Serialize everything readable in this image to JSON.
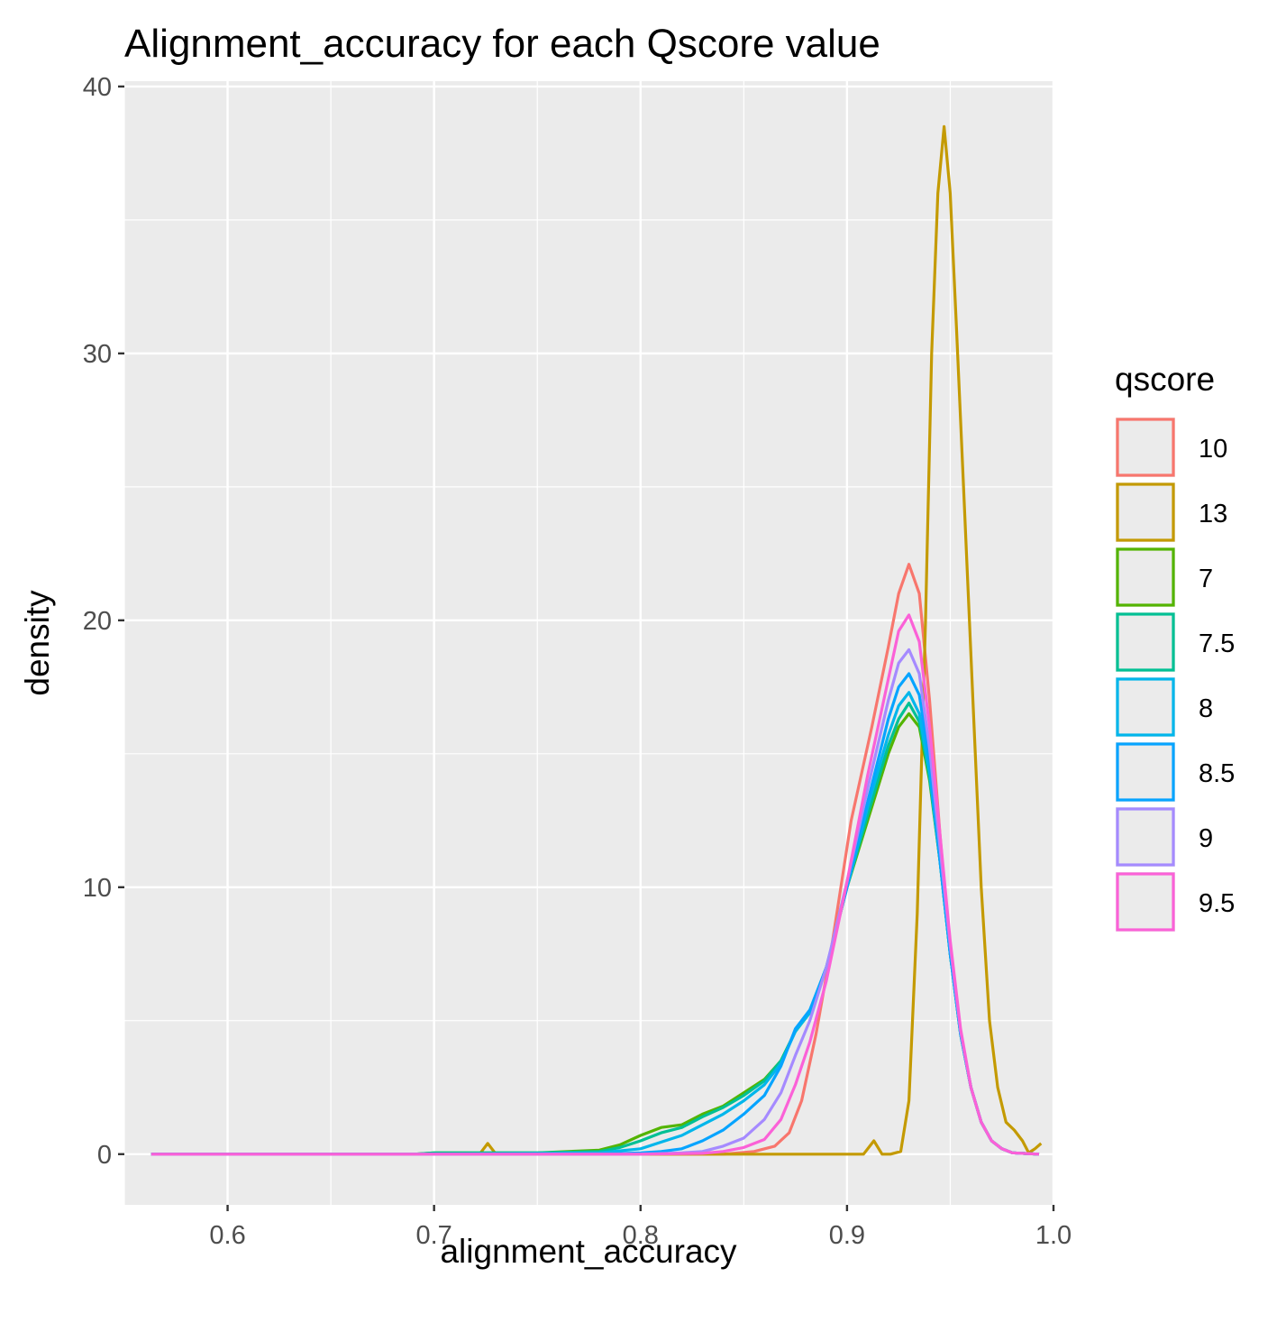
{
  "chart_data": {
    "type": "line",
    "title": "Alignment_accuracy for each Qscore value",
    "xlabel": "alignment_accuracy",
    "ylabel": "density",
    "xlim": [
      0.55,
      1.0
    ],
    "ylim": [
      -1.9,
      40.2
    ],
    "x_ticks": [
      0.6,
      0.7,
      0.8,
      0.9,
      1.0
    ],
    "x_tick_labels": [
      "0.6",
      "0.7",
      "0.8",
      "0.9",
      "1.0"
    ],
    "y_ticks": [
      0,
      10,
      20,
      30,
      40
    ],
    "y_tick_labels": [
      "0",
      "10",
      "20",
      "30",
      "40"
    ],
    "grid": true,
    "legend": {
      "title": "qscore",
      "position": "right"
    },
    "series": [
      {
        "name": "10",
        "color": "#F8766D",
        "points": [
          [
            0.563,
            0
          ],
          [
            0.7,
            0
          ],
          [
            0.8,
            0
          ],
          [
            0.84,
            0
          ],
          [
            0.855,
            0.1
          ],
          [
            0.865,
            0.3
          ],
          [
            0.872,
            0.8
          ],
          [
            0.878,
            2
          ],
          [
            0.885,
            4.5
          ],
          [
            0.893,
            8
          ],
          [
            0.902,
            12.5
          ],
          [
            0.912,
            16
          ],
          [
            0.92,
            19
          ],
          [
            0.925,
            21
          ],
          [
            0.93,
            22.1
          ],
          [
            0.935,
            21
          ],
          [
            0.94,
            17
          ],
          [
            0.945,
            12
          ],
          [
            0.95,
            7.5
          ],
          [
            0.955,
            4.5
          ],
          [
            0.96,
            2.5
          ],
          [
            0.965,
            1.2
          ],
          [
            0.97,
            0.5
          ],
          [
            0.975,
            0.2
          ],
          [
            0.98,
            0.05
          ],
          [
            0.993,
            0
          ]
        ]
      },
      {
        "name": "13",
        "color": "#C49A00",
        "points": [
          [
            0.563,
            0
          ],
          [
            0.7,
            0
          ],
          [
            0.722,
            0
          ],
          [
            0.726,
            0.4
          ],
          [
            0.73,
            0
          ],
          [
            0.74,
            0
          ],
          [
            0.8,
            0
          ],
          [
            0.85,
            0
          ],
          [
            0.9,
            0
          ],
          [
            0.908,
            0
          ],
          [
            0.913,
            0.5
          ],
          [
            0.917,
            0
          ],
          [
            0.921,
            0
          ],
          [
            0.926,
            0.1
          ],
          [
            0.93,
            2
          ],
          [
            0.934,
            9
          ],
          [
            0.938,
            20
          ],
          [
            0.941,
            30
          ],
          [
            0.944,
            36
          ],
          [
            0.947,
            38.5
          ],
          [
            0.95,
            36
          ],
          [
            0.953,
            31
          ],
          [
            0.957,
            24
          ],
          [
            0.961,
            17
          ],
          [
            0.965,
            10
          ],
          [
            0.969,
            5
          ],
          [
            0.973,
            2.5
          ],
          [
            0.977,
            1.2
          ],
          [
            0.981,
            0.9
          ],
          [
            0.985,
            0.5
          ],
          [
            0.988,
            0.05
          ],
          [
            0.991,
            0.2
          ],
          [
            0.994,
            0.4
          ]
        ]
      },
      {
        "name": "7",
        "color": "#53B400",
        "points": [
          [
            0.563,
            0
          ],
          [
            0.69,
            0
          ],
          [
            0.7,
            0.05
          ],
          [
            0.75,
            0.05
          ],
          [
            0.78,
            0.15
          ],
          [
            0.79,
            0.35
          ],
          [
            0.8,
            0.7
          ],
          [
            0.81,
            1.0
          ],
          [
            0.82,
            1.1
          ],
          [
            0.83,
            1.5
          ],
          [
            0.84,
            1.8
          ],
          [
            0.85,
            2.3
          ],
          [
            0.86,
            2.8
          ],
          [
            0.868,
            3.5
          ],
          [
            0.875,
            4.6
          ],
          [
            0.882,
            5.3
          ],
          [
            0.89,
            7
          ],
          [
            0.9,
            10
          ],
          [
            0.91,
            12.5
          ],
          [
            0.92,
            15
          ],
          [
            0.925,
            16
          ],
          [
            0.93,
            16.5
          ],
          [
            0.935,
            16
          ],
          [
            0.94,
            14
          ],
          [
            0.945,
            11
          ],
          [
            0.95,
            7.5
          ],
          [
            0.955,
            4.5
          ],
          [
            0.96,
            2.5
          ],
          [
            0.965,
            1.2
          ],
          [
            0.97,
            0.5
          ],
          [
            0.975,
            0.2
          ],
          [
            0.98,
            0.05
          ],
          [
            0.993,
            0
          ]
        ]
      },
      {
        "name": "7.5",
        "color": "#00C094",
        "points": [
          [
            0.563,
            0
          ],
          [
            0.69,
            0
          ],
          [
            0.7,
            0.05
          ],
          [
            0.75,
            0.05
          ],
          [
            0.78,
            0.1
          ],
          [
            0.79,
            0.25
          ],
          [
            0.8,
            0.5
          ],
          [
            0.81,
            0.8
          ],
          [
            0.82,
            1.0
          ],
          [
            0.83,
            1.4
          ],
          [
            0.84,
            1.75
          ],
          [
            0.85,
            2.2
          ],
          [
            0.86,
            2.75
          ],
          [
            0.868,
            3.5
          ],
          [
            0.875,
            4.6
          ],
          [
            0.882,
            5.3
          ],
          [
            0.89,
            7
          ],
          [
            0.9,
            10
          ],
          [
            0.91,
            12.7
          ],
          [
            0.92,
            15.3
          ],
          [
            0.925,
            16.3
          ],
          [
            0.93,
            16.9
          ],
          [
            0.935,
            16.2
          ],
          [
            0.94,
            14.1
          ],
          [
            0.945,
            11
          ],
          [
            0.95,
            7.5
          ],
          [
            0.955,
            4.5
          ],
          [
            0.96,
            2.5
          ],
          [
            0.965,
            1.2
          ],
          [
            0.97,
            0.5
          ],
          [
            0.975,
            0.2
          ],
          [
            0.98,
            0.05
          ],
          [
            0.993,
            0
          ]
        ]
      },
      {
        "name": "8",
        "color": "#00B6EB",
        "points": [
          [
            0.563,
            0
          ],
          [
            0.7,
            0
          ],
          [
            0.75,
            0.03
          ],
          [
            0.78,
            0.05
          ],
          [
            0.8,
            0.2
          ],
          [
            0.81,
            0.45
          ],
          [
            0.82,
            0.7
          ],
          [
            0.83,
            1.1
          ],
          [
            0.84,
            1.5
          ],
          [
            0.85,
            2.0
          ],
          [
            0.86,
            2.6
          ],
          [
            0.868,
            3.4
          ],
          [
            0.875,
            4.6
          ],
          [
            0.882,
            5.3
          ],
          [
            0.89,
            7
          ],
          [
            0.9,
            10
          ],
          [
            0.91,
            13
          ],
          [
            0.92,
            15.7
          ],
          [
            0.925,
            16.8
          ],
          [
            0.93,
            17.3
          ],
          [
            0.935,
            16.5
          ],
          [
            0.94,
            14.3
          ],
          [
            0.945,
            11
          ],
          [
            0.95,
            7.5
          ],
          [
            0.955,
            4.5
          ],
          [
            0.96,
            2.5
          ],
          [
            0.965,
            1.2
          ],
          [
            0.97,
            0.5
          ],
          [
            0.975,
            0.2
          ],
          [
            0.98,
            0.05
          ],
          [
            0.993,
            0
          ]
        ]
      },
      {
        "name": "8.5",
        "color": "#06A4FF",
        "points": [
          [
            0.563,
            0
          ],
          [
            0.7,
            0
          ],
          [
            0.78,
            0
          ],
          [
            0.8,
            0.05
          ],
          [
            0.81,
            0.1
          ],
          [
            0.82,
            0.2
          ],
          [
            0.83,
            0.5
          ],
          [
            0.84,
            0.9
          ],
          [
            0.85,
            1.5
          ],
          [
            0.86,
            2.2
          ],
          [
            0.868,
            3.3
          ],
          [
            0.875,
            4.7
          ],
          [
            0.882,
            5.4
          ],
          [
            0.89,
            7
          ],
          [
            0.9,
            10
          ],
          [
            0.91,
            13.2
          ],
          [
            0.92,
            16.3
          ],
          [
            0.925,
            17.5
          ],
          [
            0.93,
            18
          ],
          [
            0.935,
            17.2
          ],
          [
            0.94,
            14.7
          ],
          [
            0.945,
            11
          ],
          [
            0.95,
            7.5
          ],
          [
            0.955,
            4.5
          ],
          [
            0.96,
            2.5
          ],
          [
            0.965,
            1.2
          ],
          [
            0.97,
            0.5
          ],
          [
            0.975,
            0.2
          ],
          [
            0.98,
            0.05
          ],
          [
            0.993,
            0
          ]
        ]
      },
      {
        "name": "9",
        "color": "#A58AFF",
        "points": [
          [
            0.563,
            0
          ],
          [
            0.7,
            0
          ],
          [
            0.8,
            0
          ],
          [
            0.82,
            0.05
          ],
          [
            0.83,
            0.1
          ],
          [
            0.84,
            0.3
          ],
          [
            0.85,
            0.6
          ],
          [
            0.86,
            1.3
          ],
          [
            0.868,
            2.3
          ],
          [
            0.875,
            3.7
          ],
          [
            0.882,
            5
          ],
          [
            0.89,
            7
          ],
          [
            0.9,
            10.2
          ],
          [
            0.91,
            13.7
          ],
          [
            0.92,
            17
          ],
          [
            0.925,
            18.4
          ],
          [
            0.93,
            18.9
          ],
          [
            0.935,
            18
          ],
          [
            0.94,
            15.2
          ],
          [
            0.945,
            11.5
          ],
          [
            0.95,
            7.8
          ],
          [
            0.955,
            4.6
          ],
          [
            0.96,
            2.5
          ],
          [
            0.965,
            1.2
          ],
          [
            0.97,
            0.5
          ],
          [
            0.975,
            0.2
          ],
          [
            0.98,
            0.05
          ],
          [
            0.993,
            0
          ]
        ]
      },
      {
        "name": "9.5",
        "color": "#FB61D7",
        "points": [
          [
            0.563,
            0
          ],
          [
            0.7,
            0
          ],
          [
            0.8,
            0
          ],
          [
            0.83,
            0.03
          ],
          [
            0.84,
            0.1
          ],
          [
            0.85,
            0.25
          ],
          [
            0.86,
            0.55
          ],
          [
            0.868,
            1.3
          ],
          [
            0.875,
            2.6
          ],
          [
            0.882,
            4.2
          ],
          [
            0.89,
            6.5
          ],
          [
            0.9,
            10.2
          ],
          [
            0.91,
            14.2
          ],
          [
            0.92,
            17.8
          ],
          [
            0.925,
            19.6
          ],
          [
            0.93,
            20.2
          ],
          [
            0.935,
            19.2
          ],
          [
            0.94,
            16
          ],
          [
            0.945,
            12
          ],
          [
            0.95,
            8
          ],
          [
            0.955,
            4.7
          ],
          [
            0.96,
            2.5
          ],
          [
            0.965,
            1.2
          ],
          [
            0.97,
            0.5
          ],
          [
            0.975,
            0.2
          ],
          [
            0.98,
            0.05
          ],
          [
            0.993,
            0
          ]
        ]
      }
    ]
  }
}
